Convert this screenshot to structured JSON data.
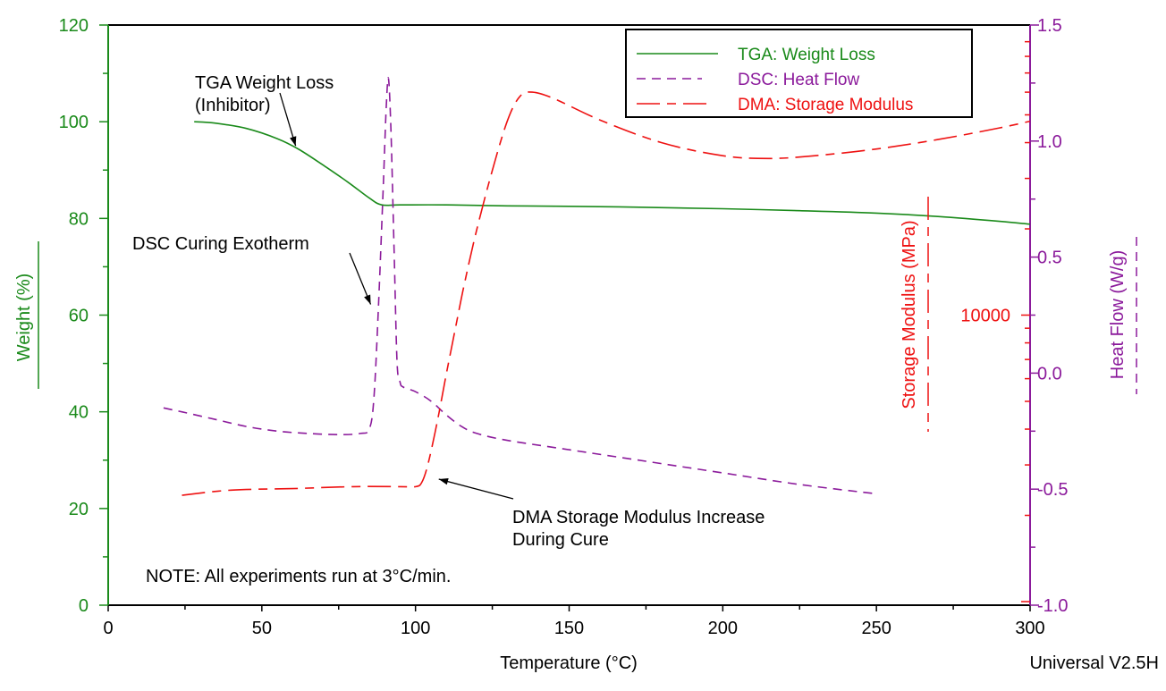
{
  "chart_data": {
    "type": "line",
    "xlabel": "Temperature (°C)",
    "xlim": [
      0,
      300
    ],
    "x_ticks": [
      "0",
      "50",
      "100",
      "150",
      "200",
      "250",
      "300"
    ],
    "x_tick_values": [
      0,
      50,
      100,
      150,
      200,
      250,
      300
    ],
    "axes": {
      "left": {
        "label": "Weight (%)",
        "range": [
          0,
          120
        ],
        "ticks": [
          "0",
          "20",
          "40",
          "60",
          "80",
          "100",
          "120"
        ],
        "tick_values": [
          0,
          20,
          40,
          60,
          80,
          100,
          120
        ],
        "color": "#1a8a1a"
      },
      "right": {
        "label": "Heat Flow (W/g)",
        "range": [
          -1.0,
          1.5
        ],
        "ticks": [
          "-1.0",
          "-0.5",
          "0.0",
          "0.5",
          "1.0",
          "1.5"
        ],
        "tick_values": [
          -1.0,
          -0.5,
          0.0,
          0.5,
          1.0,
          1.5
        ],
        "color": "#8b1a9b"
      },
      "right_inner": {
        "label": "Storage Modulus (MPa)",
        "scale": "log",
        "range": [
          1000,
          100000
        ],
        "ticks": [
          "10000"
        ],
        "tick_values": [
          10000
        ],
        "color": "#ee1111"
      }
    },
    "legend": {
      "position": "top-right",
      "entries": [
        {
          "label": "TGA: Weight Loss",
          "style": "solid",
          "color": "#1a8a1a"
        },
        {
          "label": "DSC: Heat Flow",
          "style": "dashed",
          "color": "#8b1a9b"
        },
        {
          "label": "DMA: Storage Modulus",
          "style": "dash-long-short",
          "color": "#ee1111"
        }
      ]
    },
    "series": [
      {
        "name": "TGA: Weight Loss",
        "axis": "left",
        "color": "#1a8a1a",
        "style": "solid",
        "x": [
          28,
          35,
          45,
          55,
          62,
          70,
          78,
          85,
          89,
          95,
          110,
          130,
          150,
          175,
          200,
          225,
          250,
          270,
          290,
          300
        ],
        "y": [
          100,
          99.7,
          98.6,
          96.5,
          94.3,
          91.0,
          87.5,
          84.2,
          82.8,
          82.8,
          82.8,
          82.6,
          82.5,
          82.3,
          82.0,
          81.6,
          81.1,
          80.4,
          79.4,
          78.8
        ]
      },
      {
        "name": "DSC: Heat Flow",
        "axis": "right",
        "color": "#8b1a9b",
        "style": "dashed",
        "x": [
          18,
          25,
          35,
          45,
          55,
          65,
          75,
          82,
          85,
          86.5,
          88,
          89.5,
          90.5,
          91.2,
          92,
          93,
          94,
          95,
          96,
          100,
          105,
          110,
          115,
          120,
          130,
          150,
          175,
          200,
          225,
          250
        ],
        "y": [
          -0.15,
          -0.17,
          -0.2,
          -0.23,
          -0.25,
          -0.26,
          -0.265,
          -0.26,
          -0.24,
          -0.1,
          0.3,
          0.8,
          1.15,
          1.27,
          1.05,
          0.55,
          0.05,
          -0.04,
          -0.06,
          -0.08,
          -0.12,
          -0.18,
          -0.23,
          -0.26,
          -0.29,
          -0.33,
          -0.38,
          -0.43,
          -0.48,
          -0.52
        ]
      },
      {
        "name": "DMA: Storage Modulus",
        "axis": "right_inner",
        "color": "#ee1111",
        "style": "dash-long-short",
        "x": [
          24,
          40,
          60,
          80,
          95,
          100,
          102,
          104,
          107,
          110,
          113,
          116,
          120,
          125,
          130,
          134,
          138,
          145,
          160,
          180,
          200,
          215,
          230,
          250,
          270,
          290,
          300
        ],
        "y": [
          2350,
          2450,
          2480,
          2520,
          2520,
          2520,
          2600,
          3000,
          4200,
          6200,
          9000,
          13000,
          20000,
          32000,
          48000,
          58000,
          60000,
          57000,
          48000,
          40000,
          36000,
          35200,
          36000,
          38000,
          41000,
          45000,
          47500
        ]
      }
    ],
    "annotations": [
      {
        "lines": [
          "TGA Weight Loss",
          "(Inhibitor)"
        ],
        "arrow_to": {
          "x": 61,
          "y_axis": "left",
          "y": 95
        }
      },
      {
        "lines": [
          "DSC Curing Exotherm"
        ],
        "arrow_to": {
          "x": 86,
          "y_axis": "right",
          "y": 0.35
        }
      },
      {
        "lines": [
          "DMA Storage Modulus Increase",
          "During Cure"
        ],
        "arrow_to": {
          "x": 107,
          "y_axis": "left",
          "y": 26
        }
      },
      {
        "lines": [
          "NOTE: All experiments run at 3°C/min."
        ]
      }
    ],
    "footer": "Universal V2.5H"
  }
}
